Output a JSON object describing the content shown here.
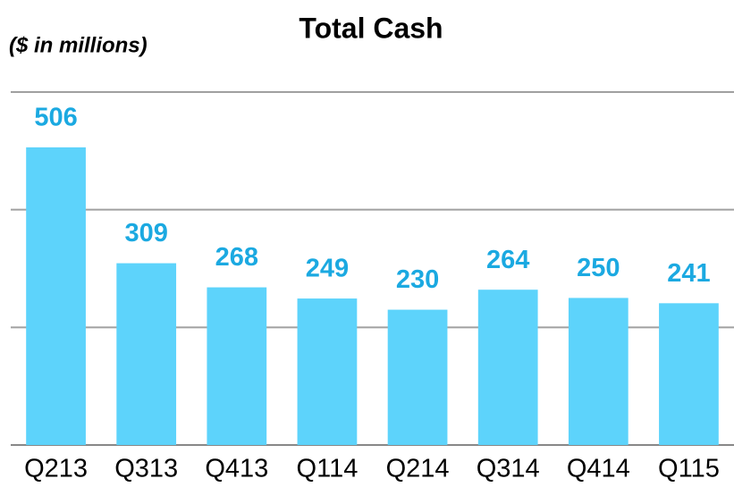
{
  "chart_data": {
    "type": "bar",
    "title": "Total Cash",
    "subtitle": "($ in millions)",
    "categories": [
      "Q213",
      "Q313",
      "Q413",
      "Q114",
      "Q214",
      "Q314",
      "Q414",
      "Q115"
    ],
    "values": [
      506,
      309,
      268,
      249,
      230,
      264,
      250,
      241
    ],
    "color": "#5dd3fb",
    "label_color": "#1ba9e1",
    "ylim": [
      0,
      600
    ],
    "yticks": [
      0,
      200,
      400,
      600
    ],
    "grid": true
  }
}
